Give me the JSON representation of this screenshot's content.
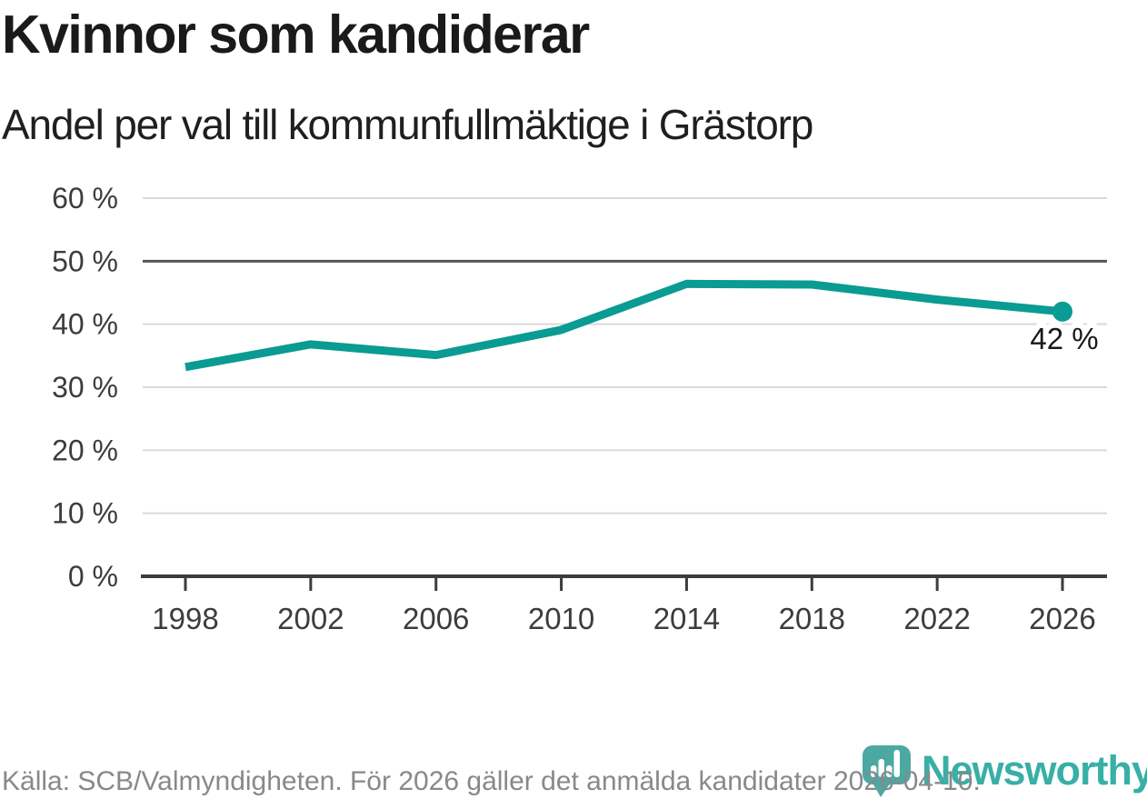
{
  "header": {
    "title": "Kvinnor som kandiderar",
    "subtitle": "Andel per val till kommunfullmäktige i Grästorp"
  },
  "chart_data": {
    "type": "line",
    "title": "Kvinnor som kandiderar",
    "subtitle": "Andel per val till kommunfullmäktige i Grästorp",
    "x": [
      "1998",
      "2002",
      "2006",
      "2010",
      "2014",
      "2018",
      "2022",
      "2026"
    ],
    "series": [
      {
        "name": "Kvinnor som kandiderar",
        "values": [
          33.2,
          36.8,
          35.1,
          39.1,
          46.4,
          46.3,
          43.9,
          42
        ]
      }
    ],
    "ylim": [
      0,
      60
    ],
    "yticks": [
      {
        "value": 0,
        "label": "0 %"
      },
      {
        "value": 10,
        "label": "10 %"
      },
      {
        "value": 20,
        "label": "20 %"
      },
      {
        "value": 30,
        "label": "30 %"
      },
      {
        "value": 40,
        "label": "40 %"
      },
      {
        "value": 50,
        "label": "50 %"
      },
      {
        "value": 60,
        "label": "60 %"
      }
    ],
    "reference_line_y": 50,
    "grid": true,
    "legend_position": "none",
    "end_label": "42 %",
    "colors": {
      "line": "#0a9b92",
      "grid": "#d9d9d9",
      "reference": "#56565b",
      "axis": "#3b3b40",
      "tick_text": "#3c3c40"
    }
  },
  "footer": {
    "source": "Källa: SCB/Valmyndigheten. För 2026 gäller det anmälda kandidater 2026-04-10.",
    "brand": "Newsworthy",
    "brand_color": "#38afa7",
    "bubble_color": "#4ba9a2"
  }
}
